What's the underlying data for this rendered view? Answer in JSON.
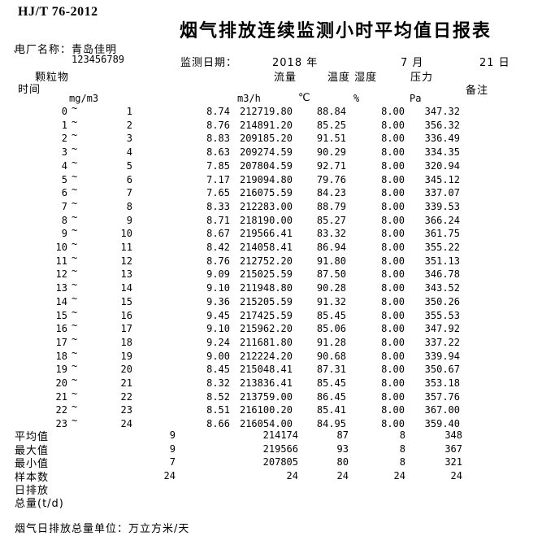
{
  "document": {
    "standard_code": "HJ/T  76-2012",
    "title": "烟气排放连续监测小时平均值日报表",
    "plant_line": "电厂名称：青岛佳明",
    "tick_mark": "`",
    "plant_id": "123456789",
    "date_label": "监测日期：",
    "date_year": "2018 年",
    "date_month": "7 月",
    "date_day": "21 日"
  },
  "columns": {
    "time_label": "时间",
    "pm_label": "颗粒物",
    "flow_label": "流量",
    "temp_humidity_label": "温度 湿度",
    "pressure_label": "压力",
    "remark_label": "备注",
    "units": {
      "pm": "mg/m3",
      "flow": "m3/h",
      "temp": "℃",
      "humidity": "%",
      "pressure": "Pa"
    }
  },
  "table": {
    "rows": [
      {
        "start": "0",
        "tilde": "~",
        "end": "1",
        "pm": "8.74",
        "flow": "212719.80",
        "temp": "88.84",
        "humidity": "8.00",
        "pressure": "347.32"
      },
      {
        "start": "1",
        "tilde": "~",
        "end": "2",
        "pm": "8.76",
        "flow": "214891.20",
        "temp": "85.25",
        "humidity": "8.00",
        "pressure": "356.32"
      },
      {
        "start": "2",
        "tilde": "~",
        "end": "3",
        "pm": "8.83",
        "flow": "209185.20",
        "temp": "91.51",
        "humidity": "8.00",
        "pressure": "336.49"
      },
      {
        "start": "3",
        "tilde": "~",
        "end": "4",
        "pm": "8.63",
        "flow": "209274.59",
        "temp": "90.29",
        "humidity": "8.00",
        "pressure": "334.35"
      },
      {
        "start": "4",
        "tilde": "~",
        "end": "5",
        "pm": "7.85",
        "flow": "207804.59",
        "temp": "92.71",
        "humidity": "8.00",
        "pressure": "320.94"
      },
      {
        "start": "5",
        "tilde": "~",
        "end": "6",
        "pm": "7.17",
        "flow": "219094.80",
        "temp": "79.76",
        "humidity": "8.00",
        "pressure": "345.12"
      },
      {
        "start": "6",
        "tilde": "~",
        "end": "7",
        "pm": "7.65",
        "flow": "216075.59",
        "temp": "84.23",
        "humidity": "8.00",
        "pressure": "337.07"
      },
      {
        "start": "7",
        "tilde": "~",
        "end": "8",
        "pm": "8.33",
        "flow": "212283.00",
        "temp": "88.79",
        "humidity": "8.00",
        "pressure": "339.53"
      },
      {
        "start": "8",
        "tilde": "~",
        "end": "9",
        "pm": "8.71",
        "flow": "218190.00",
        "temp": "85.27",
        "humidity": "8.00",
        "pressure": "366.24"
      },
      {
        "start": "9",
        "tilde": "~",
        "end": "10",
        "pm": "8.67",
        "flow": "219566.41",
        "temp": "83.32",
        "humidity": "8.00",
        "pressure": "361.75"
      },
      {
        "start": "10",
        "tilde": "~",
        "end": "11",
        "pm": "8.42",
        "flow": "214058.41",
        "temp": "86.94",
        "humidity": "8.00",
        "pressure": "355.22"
      },
      {
        "start": "11",
        "tilde": "~",
        "end": "12",
        "pm": "8.76",
        "flow": "212752.20",
        "temp": "91.80",
        "humidity": "8.00",
        "pressure": "351.13"
      },
      {
        "start": "12",
        "tilde": "~",
        "end": "13",
        "pm": "9.09",
        "flow": "215025.59",
        "temp": "87.50",
        "humidity": "8.00",
        "pressure": "346.78"
      },
      {
        "start": "13",
        "tilde": "~",
        "end": "14",
        "pm": "9.10",
        "flow": "211948.80",
        "temp": "90.28",
        "humidity": "8.00",
        "pressure": "343.52"
      },
      {
        "start": "14",
        "tilde": "~",
        "end": "15",
        "pm": "9.36",
        "flow": "215205.59",
        "temp": "91.32",
        "humidity": "8.00",
        "pressure": "350.26"
      },
      {
        "start": "15",
        "tilde": "~",
        "end": "16",
        "pm": "9.45",
        "flow": "217425.59",
        "temp": "85.45",
        "humidity": "8.00",
        "pressure": "355.53"
      },
      {
        "start": "16",
        "tilde": "~",
        "end": "17",
        "pm": "9.10",
        "flow": "215962.20",
        "temp": "85.06",
        "humidity": "8.00",
        "pressure": "347.92"
      },
      {
        "start": "17",
        "tilde": "~",
        "end": "18",
        "pm": "9.24",
        "flow": "211681.80",
        "temp": "91.28",
        "humidity": "8.00",
        "pressure": "337.22"
      },
      {
        "start": "18",
        "tilde": "~",
        "end": "19",
        "pm": "9.00",
        "flow": "212224.20",
        "temp": "90.68",
        "humidity": "8.00",
        "pressure": "339.94"
      },
      {
        "start": "19",
        "tilde": "~",
        "end": "20",
        "pm": "8.45",
        "flow": "215048.41",
        "temp": "87.31",
        "humidity": "8.00",
        "pressure": "350.67"
      },
      {
        "start": "20",
        "tilde": "~",
        "end": "21",
        "pm": "8.32",
        "flow": "213836.41",
        "temp": "85.45",
        "humidity": "8.00",
        "pressure": "353.18"
      },
      {
        "start": "21",
        "tilde": "~",
        "end": "22",
        "pm": "8.52",
        "flow": "213759.00",
        "temp": "86.45",
        "humidity": "8.00",
        "pressure": "357.76"
      },
      {
        "start": "22",
        "tilde": "~",
        "end": "23",
        "pm": "8.51",
        "flow": "216100.20",
        "temp": "85.41",
        "humidity": "8.00",
        "pressure": "367.00"
      },
      {
        "start": "23",
        "tilde": "~",
        "end": "24",
        "pm": "8.66",
        "flow": "216054.00",
        "temp": "84.95",
        "humidity": "8.00",
        "pressure": "359.40"
      }
    ]
  },
  "summary": {
    "rows": [
      {
        "label": "平均值",
        "pm": "9",
        "flow": "214174",
        "temp": "87",
        "humidity": "8",
        "pressure": "348"
      },
      {
        "label": "最大值",
        "pm": "9",
        "flow": "219566",
        "temp": "93",
        "humidity": "8",
        "pressure": "367"
      },
      {
        "label": "最小值",
        "pm": "7",
        "flow": "207805",
        "temp": "80",
        "humidity": "8",
        "pressure": "321"
      },
      {
        "label": "样本数",
        "pm": "24",
        "flow": "24",
        "temp": "24",
        "humidity": "24",
        "pressure": "24"
      }
    ],
    "daily_emission_line1": "日排放",
    "daily_emission_line2": "总量(t/d)"
  },
  "footer": {
    "note": "烟气日排放总量单位：万立方米/天"
  }
}
